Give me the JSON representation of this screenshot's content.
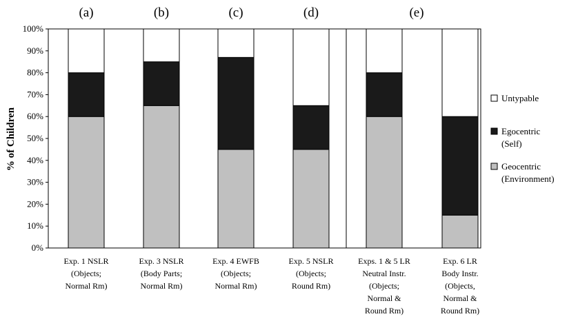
{
  "chart_data": {
    "type": "bar",
    "stacked": true,
    "y_tick_labels": [
      "0%",
      "10%",
      "20%",
      "30%",
      "40%",
      "50%",
      "60%",
      "70%",
      "80%",
      "90%",
      "100%"
    ],
    "ylabel": "% of Children",
    "ylim": [
      0,
      100
    ],
    "grid": false,
    "legend_position": "right",
    "panel_labels": [
      "(a)",
      "(b)",
      "(c)",
      "(d)",
      "(e)"
    ],
    "categories": [
      [
        "Exp. 1 NSLR",
        "(Objects;",
        "Normal Rm)"
      ],
      [
        "Exp. 3 NSLR",
        "(Body Parts;",
        "Normal Rm)"
      ],
      [
        "Exp. 4 EWFB",
        "(Objects;",
        "Normal Rm)"
      ],
      [
        "Exp. 5 NSLR",
        "(Objects;",
        "Round Rm)"
      ],
      [
        "Exps. 1 & 5 LR",
        "Neutral Instr.",
        "(Objects;",
        "Normal &",
        "Round Rm)"
      ],
      [
        "Exp. 6 LR",
        "Body Instr.",
        "(Objects,",
        "Normal &",
        "Round Rm)"
      ]
    ],
    "series": [
      {
        "name": [
          "Geocentric",
          "(Environment)"
        ],
        "color": "#c0c0c0",
        "values": [
          60,
          65,
          45,
          45,
          60,
          15
        ]
      },
      {
        "name": [
          "Egocentric",
          "(Self)"
        ],
        "color": "#1a1a1a",
        "values": [
          20,
          20,
          42,
          20,
          20,
          45
        ]
      },
      {
        "name": [
          "Untypable"
        ],
        "color": "#ffffff",
        "values": [
          20,
          15,
          13,
          35,
          20,
          40
        ]
      }
    ]
  }
}
